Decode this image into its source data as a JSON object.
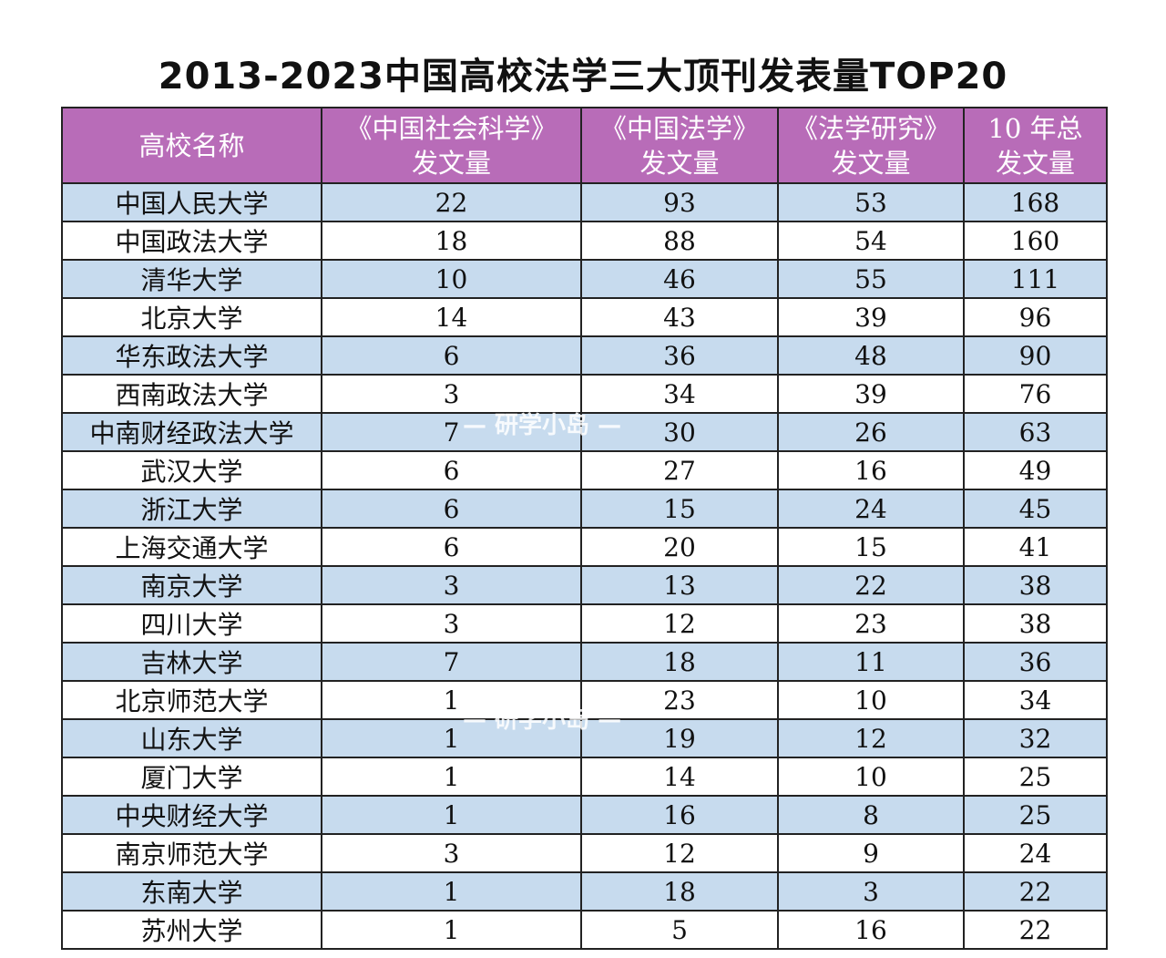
{
  "title": "2013-2023中国高校法学三大顶刊发表量TOP20",
  "colors": {
    "header_bg": "#b86cb8",
    "band_row": "#c7dbee",
    "plain_row": "#ffffff",
    "border": "#222222"
  },
  "columns": [
    {
      "lines": [
        "高校名称"
      ]
    },
    {
      "lines": [
        "《中国社会科学》",
        "发文量"
      ]
    },
    {
      "lines": [
        "《中国法学》",
        "发文量"
      ]
    },
    {
      "lines": [
        "《法学研究》",
        "发文量"
      ]
    },
    {
      "lines": [
        "10 年总",
        "发文量"
      ]
    }
  ],
  "rows": [
    [
      "中国人民大学",
      "22",
      "93",
      "53",
      "168"
    ],
    [
      "中国政法大学",
      "18",
      "88",
      "54",
      "160"
    ],
    [
      "清华大学",
      "10",
      "46",
      "55",
      "111"
    ],
    [
      "北京大学",
      "14",
      "43",
      "39",
      "96"
    ],
    [
      "华东政法大学",
      "6",
      "36",
      "48",
      "90"
    ],
    [
      "西南政法大学",
      "3",
      "34",
      "39",
      "76"
    ],
    [
      "中南财经政法大学",
      "7",
      "30",
      "26",
      "63"
    ],
    [
      "武汉大学",
      "6",
      "27",
      "16",
      "49"
    ],
    [
      "浙江大学",
      "6",
      "15",
      "24",
      "45"
    ],
    [
      "上海交通大学",
      "6",
      "20",
      "15",
      "41"
    ],
    [
      "南京大学",
      "3",
      "13",
      "22",
      "38"
    ],
    [
      "四川大学",
      "3",
      "12",
      "23",
      "38"
    ],
    [
      "吉林大学",
      "7",
      "18",
      "11",
      "36"
    ],
    [
      "北京师范大学",
      "1",
      "23",
      "10",
      "34"
    ],
    [
      "山东大学",
      "1",
      "19",
      "12",
      "32"
    ],
    [
      "厦门大学",
      "1",
      "14",
      "10",
      "25"
    ],
    [
      "中央财经大学",
      "1",
      "16",
      "8",
      "25"
    ],
    [
      "南京师范大学",
      "3",
      "12",
      "9",
      "24"
    ],
    [
      "东南大学",
      "1",
      "18",
      "3",
      "22"
    ],
    [
      "苏州大学",
      "1",
      "5",
      "16",
      "22"
    ]
  ],
  "watermark": "— 研学小岛 —"
}
